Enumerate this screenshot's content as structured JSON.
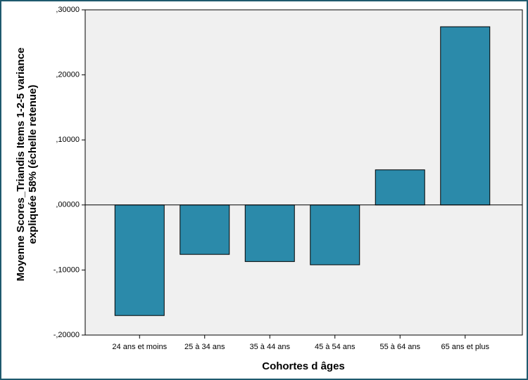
{
  "chart_data": {
    "type": "bar",
    "x_label": "Cohortes d âges",
    "y_label": [
      "Moyenne Scores_Triandis Items 1-2-5 variance",
      "expliquée 58% (échelle retenue)"
    ],
    "categories": [
      "24 ans et moins",
      "25 à 34 ans",
      "35 à 44 ans",
      "45 à 54 ans",
      "55 à 64 ans",
      "65 ans et plus"
    ],
    "values": [
      -0.17,
      -0.076,
      -0.087,
      -0.092,
      0.054,
      0.274
    ],
    "color": "#2b8aaa",
    "ylim": [
      -0.2,
      0.3
    ],
    "yticks": [
      {
        "value": -0.2,
        "label": "-,20000"
      },
      {
        "value": -0.1,
        "label": "-,10000"
      },
      {
        "value": 0,
        "label": ",00000"
      },
      {
        "value": 0.1,
        "label": ",10000"
      },
      {
        "value": 0.2,
        "label": ",20000"
      },
      {
        "value": 0.3,
        "label": ",30000"
      }
    ],
    "grid": false
  }
}
